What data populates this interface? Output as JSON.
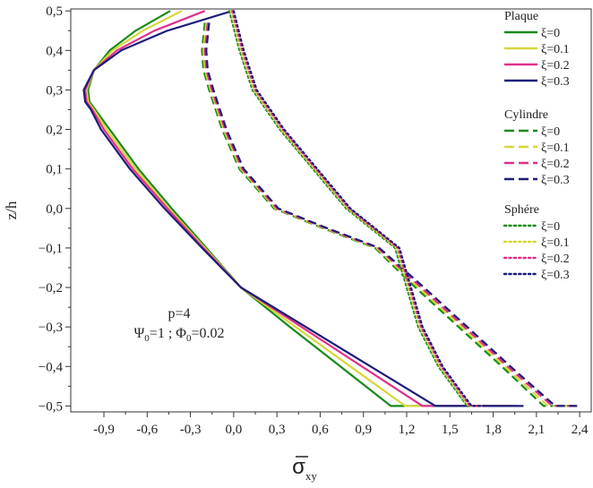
{
  "chart_data": {
    "type": "line",
    "title": "",
    "xlabel": "σ̄xy",
    "xlabel_base": "σ",
    "xlabel_sub": "xy",
    "ylabel": "z/h",
    "xlim": [
      -1.13,
      2.48
    ],
    "ylim": [
      -0.515,
      0.505
    ],
    "x_ticks": [
      -0.9,
      -0.6,
      -0.3,
      0.0,
      0.3,
      0.6,
      0.9,
      1.2,
      1.5,
      1.8,
      2.1,
      2.4
    ],
    "x_tick_labels": [
      "-0,9",
      "-0,6",
      "-0,3",
      "0,0",
      "0,3",
      "0,6",
      "0,9",
      "1,2",
      "1,5",
      "1,8",
      "2,1",
      "2,4"
    ],
    "y_ticks": [
      0.5,
      0.4,
      0.3,
      0.2,
      0.1,
      0.0,
      -0.1,
      -0.2,
      -0.3,
      -0.4,
      -0.5
    ],
    "y_tick_labels": [
      "0,5",
      "0,4",
      "0,3",
      "0,2",
      "0,1",
      "0,0",
      "−0,1",
      "−0,2",
      "−0,3",
      "−0,4",
      "−0,5"
    ],
    "annotations": [
      {
        "text": "p=4"
      },
      {
        "text": "Ψ0=1 ; Φ0=0.02",
        "parts": [
          "Ψ",
          "0",
          "=1 ; Φ",
          "0",
          "=0.02"
        ]
      }
    ],
    "legend": {
      "position": "right",
      "groups": [
        {
          "title": "Plaque",
          "style": "solid",
          "entries": [
            "ξ=0",
            "ξ=0.1",
            "ξ=0.2",
            "ξ=0.3"
          ]
        },
        {
          "title": "Cylindre",
          "style": "dashed",
          "entries": [
            "ξ=0",
            "ξ=0.1",
            "ξ=0.2",
            "ξ=0.3"
          ]
        },
        {
          "title": "Sphére",
          "style": "dotted",
          "entries": [
            "ξ=0",
            "ξ=0.1",
            "ξ=0.2",
            "ξ=0.3"
          ]
        }
      ]
    },
    "colors": [
      "#1a8a1a",
      "#d6d63a",
      "#e0308a",
      "#1c1c7a"
    ],
    "series": [
      {
        "name": "Plaque ξ=0",
        "group": "Plaque",
        "style": "solid",
        "color": "#1a8a1a",
        "points": [
          [
            -0.44,
            0.5
          ],
          [
            -0.68,
            0.45
          ],
          [
            -0.86,
            0.4
          ],
          [
            -0.97,
            0.35
          ],
          [
            -1.01,
            0.3
          ],
          [
            -1.0,
            0.27
          ],
          [
            -0.96,
            0.25
          ],
          [
            -0.86,
            0.2
          ],
          [
            -0.66,
            0.1
          ],
          [
            -0.43,
            0.0
          ],
          [
            -0.19,
            -0.1
          ],
          [
            0.05,
            -0.2
          ],
          [
            0.39,
            -0.3
          ],
          [
            0.74,
            -0.4
          ],
          [
            1.09,
            -0.5
          ],
          [
            1.9,
            -0.5
          ]
        ]
      },
      {
        "name": "Plaque ξ=0.1",
        "group": "Plaque",
        "style": "solid",
        "color": "#d6d63a",
        "points": [
          [
            -0.36,
            0.5
          ],
          [
            -0.63,
            0.45
          ],
          [
            -0.84,
            0.4
          ],
          [
            -0.97,
            0.35
          ],
          [
            -1.02,
            0.3
          ],
          [
            -1.01,
            0.27
          ],
          [
            -0.97,
            0.25
          ],
          [
            -0.88,
            0.2
          ],
          [
            -0.68,
            0.1
          ],
          [
            -0.45,
            0.0
          ],
          [
            -0.2,
            -0.1
          ],
          [
            0.05,
            -0.2
          ],
          [
            0.43,
            -0.3
          ],
          [
            0.81,
            -0.4
          ],
          [
            1.19,
            -0.5
          ],
          [
            1.94,
            -0.5
          ]
        ]
      },
      {
        "name": "Plaque ξ=0.2",
        "group": "Plaque",
        "style": "solid",
        "color": "#e0308a",
        "points": [
          [
            -0.2,
            0.5
          ],
          [
            -0.55,
            0.45
          ],
          [
            -0.81,
            0.4
          ],
          [
            -0.97,
            0.35
          ],
          [
            -1.03,
            0.3
          ],
          [
            -1.02,
            0.27
          ],
          [
            -0.98,
            0.25
          ],
          [
            -0.9,
            0.2
          ],
          [
            -0.7,
            0.1
          ],
          [
            -0.46,
            0.0
          ],
          [
            -0.21,
            -0.1
          ],
          [
            0.05,
            -0.2
          ],
          [
            0.47,
            -0.3
          ],
          [
            0.89,
            -0.4
          ],
          [
            1.31,
            -0.5
          ],
          [
            1.97,
            -0.5
          ]
        ]
      },
      {
        "name": "Plaque ξ=0.3",
        "group": "Plaque",
        "style": "solid",
        "color": "#1c1c7a",
        "points": [
          [
            -0.01,
            0.5
          ],
          [
            -0.46,
            0.45
          ],
          [
            -0.78,
            0.4
          ],
          [
            -0.97,
            0.35
          ],
          [
            -1.04,
            0.3
          ],
          [
            -1.03,
            0.27
          ],
          [
            -0.99,
            0.25
          ],
          [
            -0.92,
            0.2
          ],
          [
            -0.72,
            0.1
          ],
          [
            -0.48,
            0.0
          ],
          [
            -0.22,
            -0.1
          ],
          [
            0.05,
            -0.2
          ],
          [
            0.5,
            -0.3
          ],
          [
            0.95,
            -0.4
          ],
          [
            1.4,
            -0.5
          ],
          [
            2.01,
            -0.5
          ]
        ]
      },
      {
        "name": "Cylindre ξ=0",
        "group": "Cylindre",
        "style": "dashed",
        "color": "#1a8a1a",
        "points": [
          [
            -0.2,
            0.47
          ],
          [
            -0.22,
            0.4
          ],
          [
            -0.21,
            0.35
          ],
          [
            -0.17,
            0.3
          ],
          [
            -0.08,
            0.2
          ],
          [
            0.04,
            0.1
          ],
          [
            0.28,
            0.0
          ],
          [
            0.62,
            -0.05
          ],
          [
            0.98,
            -0.1
          ],
          [
            1.26,
            -0.2
          ],
          [
            1.56,
            -0.3
          ],
          [
            1.86,
            -0.4
          ],
          [
            2.15,
            -0.5
          ],
          [
            2.35,
            -0.5
          ]
        ]
      },
      {
        "name": "Cylindre ξ=0.1",
        "group": "Cylindre",
        "style": "dashed",
        "color": "#d6d63a",
        "points": [
          [
            -0.19,
            0.47
          ],
          [
            -0.21,
            0.4
          ],
          [
            -0.2,
            0.35
          ],
          [
            -0.16,
            0.3
          ],
          [
            -0.07,
            0.2
          ],
          [
            0.05,
            0.1
          ],
          [
            0.29,
            0.0
          ],
          [
            0.63,
            -0.05
          ],
          [
            0.99,
            -0.1
          ],
          [
            1.28,
            -0.2
          ],
          [
            1.58,
            -0.3
          ],
          [
            1.88,
            -0.4
          ],
          [
            2.18,
            -0.5
          ],
          [
            2.37,
            -0.5
          ]
        ]
      },
      {
        "name": "Cylindre ξ=0.2",
        "group": "Cylindre",
        "style": "dashed",
        "color": "#e0308a",
        "points": [
          [
            -0.18,
            0.47
          ],
          [
            -0.2,
            0.4
          ],
          [
            -0.19,
            0.35
          ],
          [
            -0.15,
            0.3
          ],
          [
            -0.06,
            0.2
          ],
          [
            0.06,
            0.1
          ],
          [
            0.3,
            0.0
          ],
          [
            0.64,
            -0.05
          ],
          [
            1.0,
            -0.1
          ],
          [
            1.3,
            -0.2
          ],
          [
            1.6,
            -0.3
          ],
          [
            1.9,
            -0.4
          ],
          [
            2.21,
            -0.5
          ],
          [
            2.39,
            -0.5
          ]
        ]
      },
      {
        "name": "Cylindre ξ=0.3",
        "group": "Cylindre",
        "style": "dashed",
        "color": "#1c1c7a",
        "points": [
          [
            -0.17,
            0.47
          ],
          [
            -0.19,
            0.4
          ],
          [
            -0.18,
            0.35
          ],
          [
            -0.14,
            0.3
          ],
          [
            -0.05,
            0.2
          ],
          [
            0.07,
            0.1
          ],
          [
            0.31,
            0.0
          ],
          [
            0.65,
            -0.05
          ],
          [
            1.01,
            -0.1
          ],
          [
            1.32,
            -0.2
          ],
          [
            1.62,
            -0.3
          ],
          [
            1.92,
            -0.4
          ],
          [
            2.23,
            -0.5
          ],
          [
            2.41,
            -0.5
          ]
        ]
      },
      {
        "name": "Sphére ξ=0",
        "group": "Sphére",
        "style": "dotted",
        "color": "#1a8a1a",
        "points": [
          [
            -0.03,
            0.5
          ],
          [
            0.04,
            0.4
          ],
          [
            0.13,
            0.3
          ],
          [
            0.32,
            0.2
          ],
          [
            0.55,
            0.1
          ],
          [
            0.78,
            0.0
          ],
          [
            0.95,
            -0.05
          ],
          [
            1.12,
            -0.1
          ],
          [
            1.2,
            -0.2
          ],
          [
            1.28,
            -0.3
          ],
          [
            1.42,
            -0.4
          ],
          [
            1.62,
            -0.5
          ],
          [
            1.72,
            -0.5
          ]
        ]
      },
      {
        "name": "Sphére ξ=0.1",
        "group": "Sphére",
        "style": "dotted",
        "color": "#d6d63a",
        "points": [
          [
            -0.02,
            0.5
          ],
          [
            0.05,
            0.4
          ],
          [
            0.14,
            0.3
          ],
          [
            0.33,
            0.2
          ],
          [
            0.56,
            0.1
          ],
          [
            0.79,
            0.0
          ],
          [
            0.96,
            -0.05
          ],
          [
            1.13,
            -0.1
          ],
          [
            1.21,
            -0.2
          ],
          [
            1.29,
            -0.3
          ],
          [
            1.43,
            -0.4
          ],
          [
            1.63,
            -0.5
          ],
          [
            1.73,
            -0.5
          ]
        ]
      },
      {
        "name": "Sphére ξ=0.2",
        "group": "Sphére",
        "style": "dotted",
        "color": "#e0308a",
        "points": [
          [
            -0.01,
            0.5
          ],
          [
            0.06,
            0.4
          ],
          [
            0.15,
            0.3
          ],
          [
            0.34,
            0.2
          ],
          [
            0.57,
            0.1
          ],
          [
            0.8,
            0.0
          ],
          [
            0.97,
            -0.05
          ],
          [
            1.14,
            -0.1
          ],
          [
            1.22,
            -0.2
          ],
          [
            1.3,
            -0.3
          ],
          [
            1.44,
            -0.4
          ],
          [
            1.64,
            -0.5
          ],
          [
            1.74,
            -0.5
          ]
        ]
      },
      {
        "name": "Sphére ξ=0.3",
        "group": "Sphére",
        "style": "dotted",
        "color": "#1c1c7a",
        "points": [
          [
            0.0,
            0.5
          ],
          [
            0.07,
            0.4
          ],
          [
            0.16,
            0.3
          ],
          [
            0.35,
            0.2
          ],
          [
            0.58,
            0.1
          ],
          [
            0.81,
            0.0
          ],
          [
            0.98,
            -0.05
          ],
          [
            1.15,
            -0.1
          ],
          [
            1.23,
            -0.2
          ],
          [
            1.31,
            -0.3
          ],
          [
            1.45,
            -0.4
          ],
          [
            1.65,
            -0.5
          ],
          [
            1.75,
            -0.5
          ]
        ]
      }
    ]
  }
}
